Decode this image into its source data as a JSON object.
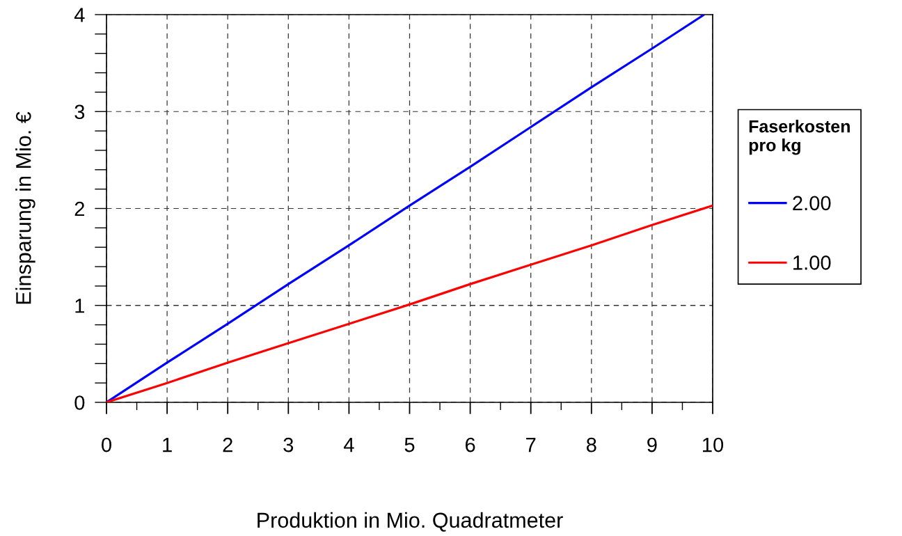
{
  "chart_data": {
    "type": "line",
    "xlabel": "Produktion in Mio. Quadratmeter",
    "ylabel": "Einsparung in Mio. €",
    "legend_title": "Faserkosten\npro kg",
    "xlim": [
      0,
      10
    ],
    "ylim": [
      0,
      4
    ],
    "xticks": [
      0,
      1,
      2,
      3,
      4,
      5,
      6,
      7,
      8,
      9,
      10
    ],
    "yticks": [
      0,
      1,
      2,
      3,
      4
    ],
    "grid": true,
    "legend": "right",
    "marker": "none",
    "line_style": "solid",
    "series": [
      {
        "name": "2.00",
        "color": "#0000ff",
        "x": [
          0,
          1,
          2,
          3,
          4,
          5,
          6,
          7,
          8,
          9,
          9.86
        ],
        "values": [
          0,
          0.41,
          0.81,
          1.22,
          1.62,
          2.03,
          2.43,
          2.84,
          3.25,
          3.65,
          4
        ]
      },
      {
        "name": "1.00",
        "color": "#ff0000",
        "x": [
          0,
          1,
          2,
          3,
          4,
          5,
          6,
          7,
          8,
          9,
          10
        ],
        "values": [
          0,
          0.2,
          0.41,
          0.61,
          0.81,
          1.01,
          1.22,
          1.42,
          1.62,
          1.83,
          2.03
        ]
      }
    ]
  }
}
